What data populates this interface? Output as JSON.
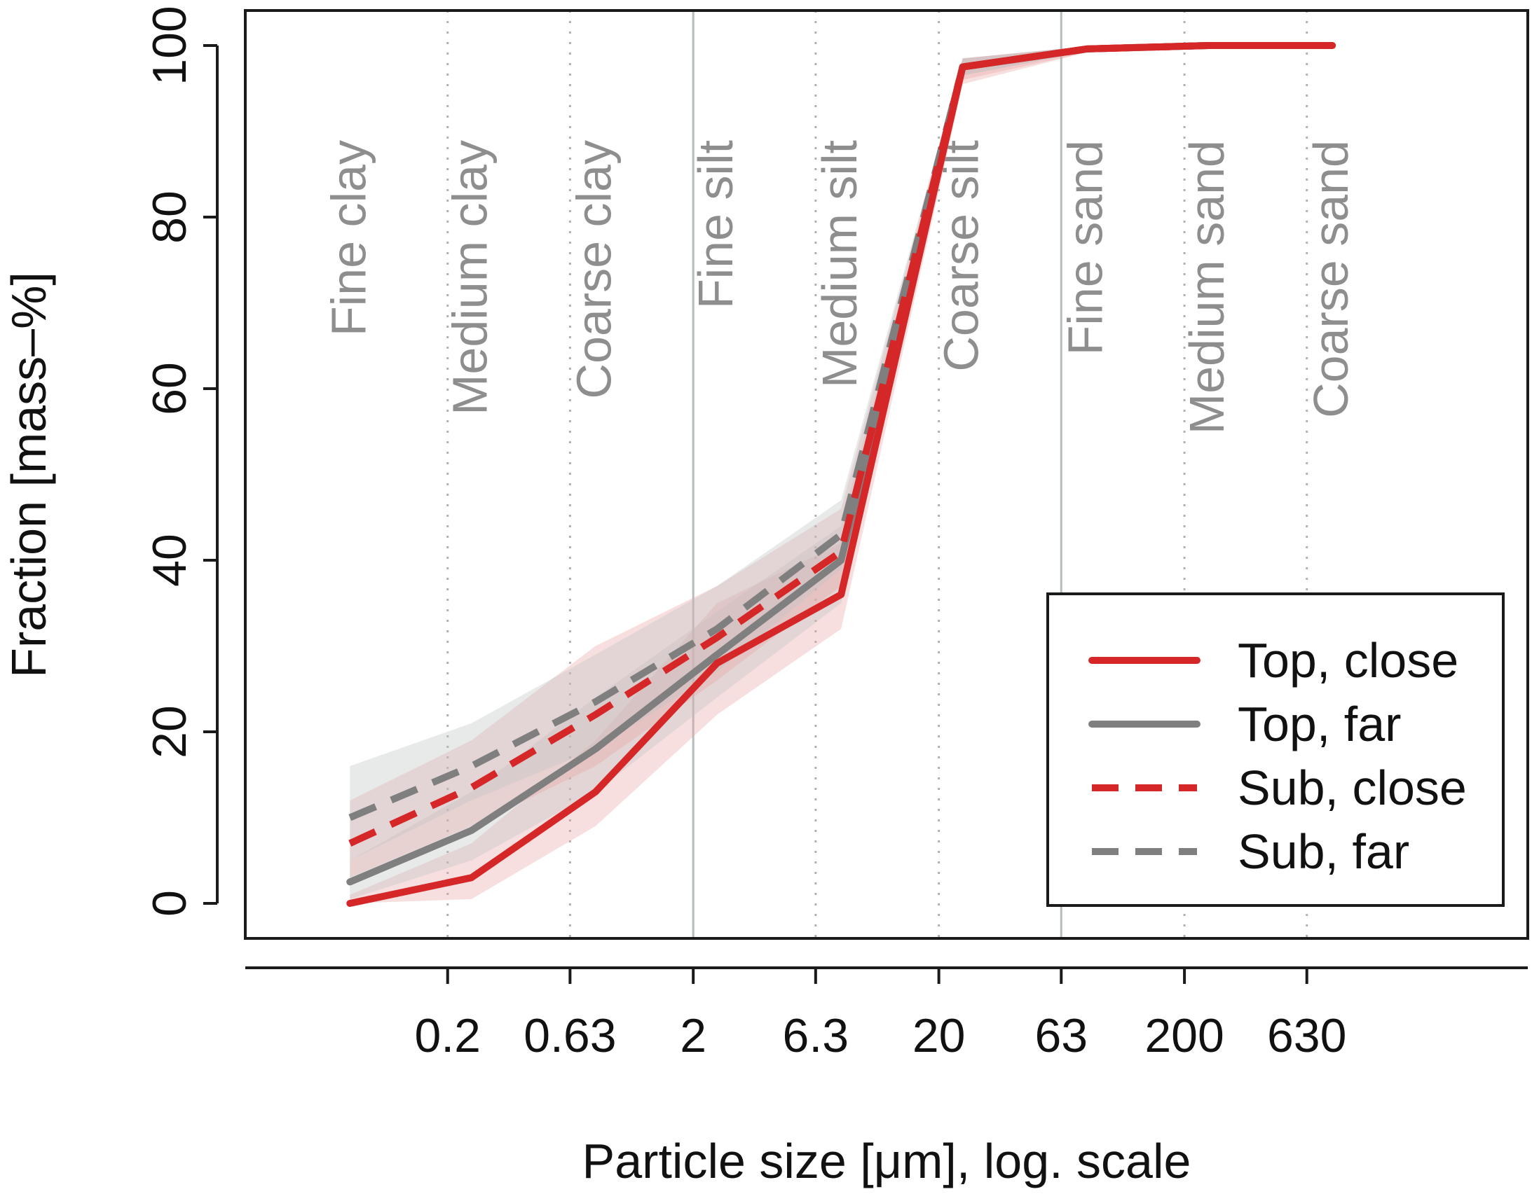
{
  "colors": {
    "red": "#d62728",
    "gray": "#7f7f7f",
    "red_band": "#e8a3a3",
    "gray_band": "#bcc2c2",
    "boundary_line": "#b5bcbc",
    "dotted_line": "#b0b0b0"
  },
  "chart_data": {
    "type": "line",
    "title": "",
    "xlabel": "Particle size [μm], log. scale",
    "ylabel": "Fraction [mass–%]",
    "ylim": [
      0,
      100
    ],
    "yticks": [
      0,
      20,
      40,
      60,
      80,
      100
    ],
    "xticks": [
      "0.2",
      "0.63",
      "2",
      "6.3",
      "20",
      "63",
      "200",
      "630"
    ],
    "x_boundaries": [
      0.2,
      0.63,
      2,
      6.3,
      20,
      63,
      200,
      630
    ],
    "solid_boundaries": [
      2,
      63
    ],
    "x_domain": [
      0.03,
      5000
    ],
    "size_classes": [
      "Fine clay",
      "Medium clay",
      "Coarse clay",
      "Fine silt",
      "Medium silt",
      "Coarse silt",
      "Fine sand",
      "Medium sand",
      "Coarse sand"
    ],
    "x": [
      0.08,
      0.25,
      0.8,
      2.5,
      8,
      25,
      80,
      250,
      800
    ],
    "series": [
      {
        "name": "Top, close",
        "color_key": "red",
        "dashed": false,
        "values": [
          0,
          3,
          13,
          28,
          36,
          97.5,
          99.6,
          100,
          100
        ],
        "band_low": [
          0,
          0.5,
          9,
          22,
          32,
          95.5,
          99.2,
          99.9,
          100
        ],
        "band_high": [
          1,
          7,
          19,
          35,
          42,
          98.5,
          99.9,
          100,
          100
        ]
      },
      {
        "name": "Top, far",
        "color_key": "gray",
        "dashed": false,
        "values": [
          2.5,
          8.5,
          18,
          29,
          40,
          97.5,
          99.6,
          100,
          100
        ],
        "band_low": [
          0.5,
          5,
          13,
          24,
          35,
          96.5,
          99.3,
          99.9,
          100
        ],
        "band_high": [
          5,
          13,
          24,
          34,
          44,
          98.5,
          99.9,
          100,
          100
        ]
      },
      {
        "name": "Sub, close",
        "color_key": "red",
        "dashed": true,
        "values": [
          7,
          13.5,
          22,
          31,
          41,
          97.5,
          99.6,
          100,
          100
        ],
        "band_low": [
          3,
          9,
          16,
          26,
          37,
          96,
          99.2,
          99.9,
          100
        ],
        "band_high": [
          12,
          19,
          30,
          37,
          46,
          98.5,
          99.9,
          100,
          100
        ]
      },
      {
        "name": "Sub, far",
        "color_key": "gray",
        "dashed": true,
        "values": [
          10,
          16,
          23.5,
          32,
          43,
          97.5,
          99.6,
          100,
          100
        ],
        "band_low": [
          5,
          12,
          18,
          27,
          39,
          96.5,
          99.3,
          99.9,
          100
        ],
        "band_high": [
          16,
          21,
          29,
          37,
          47,
          98.5,
          99.9,
          100,
          100
        ]
      }
    ],
    "legend_position": "bottom-right",
    "legend": [
      "Top, close",
      "Top, far",
      "Sub, close",
      "Sub, far"
    ],
    "grid": false
  }
}
